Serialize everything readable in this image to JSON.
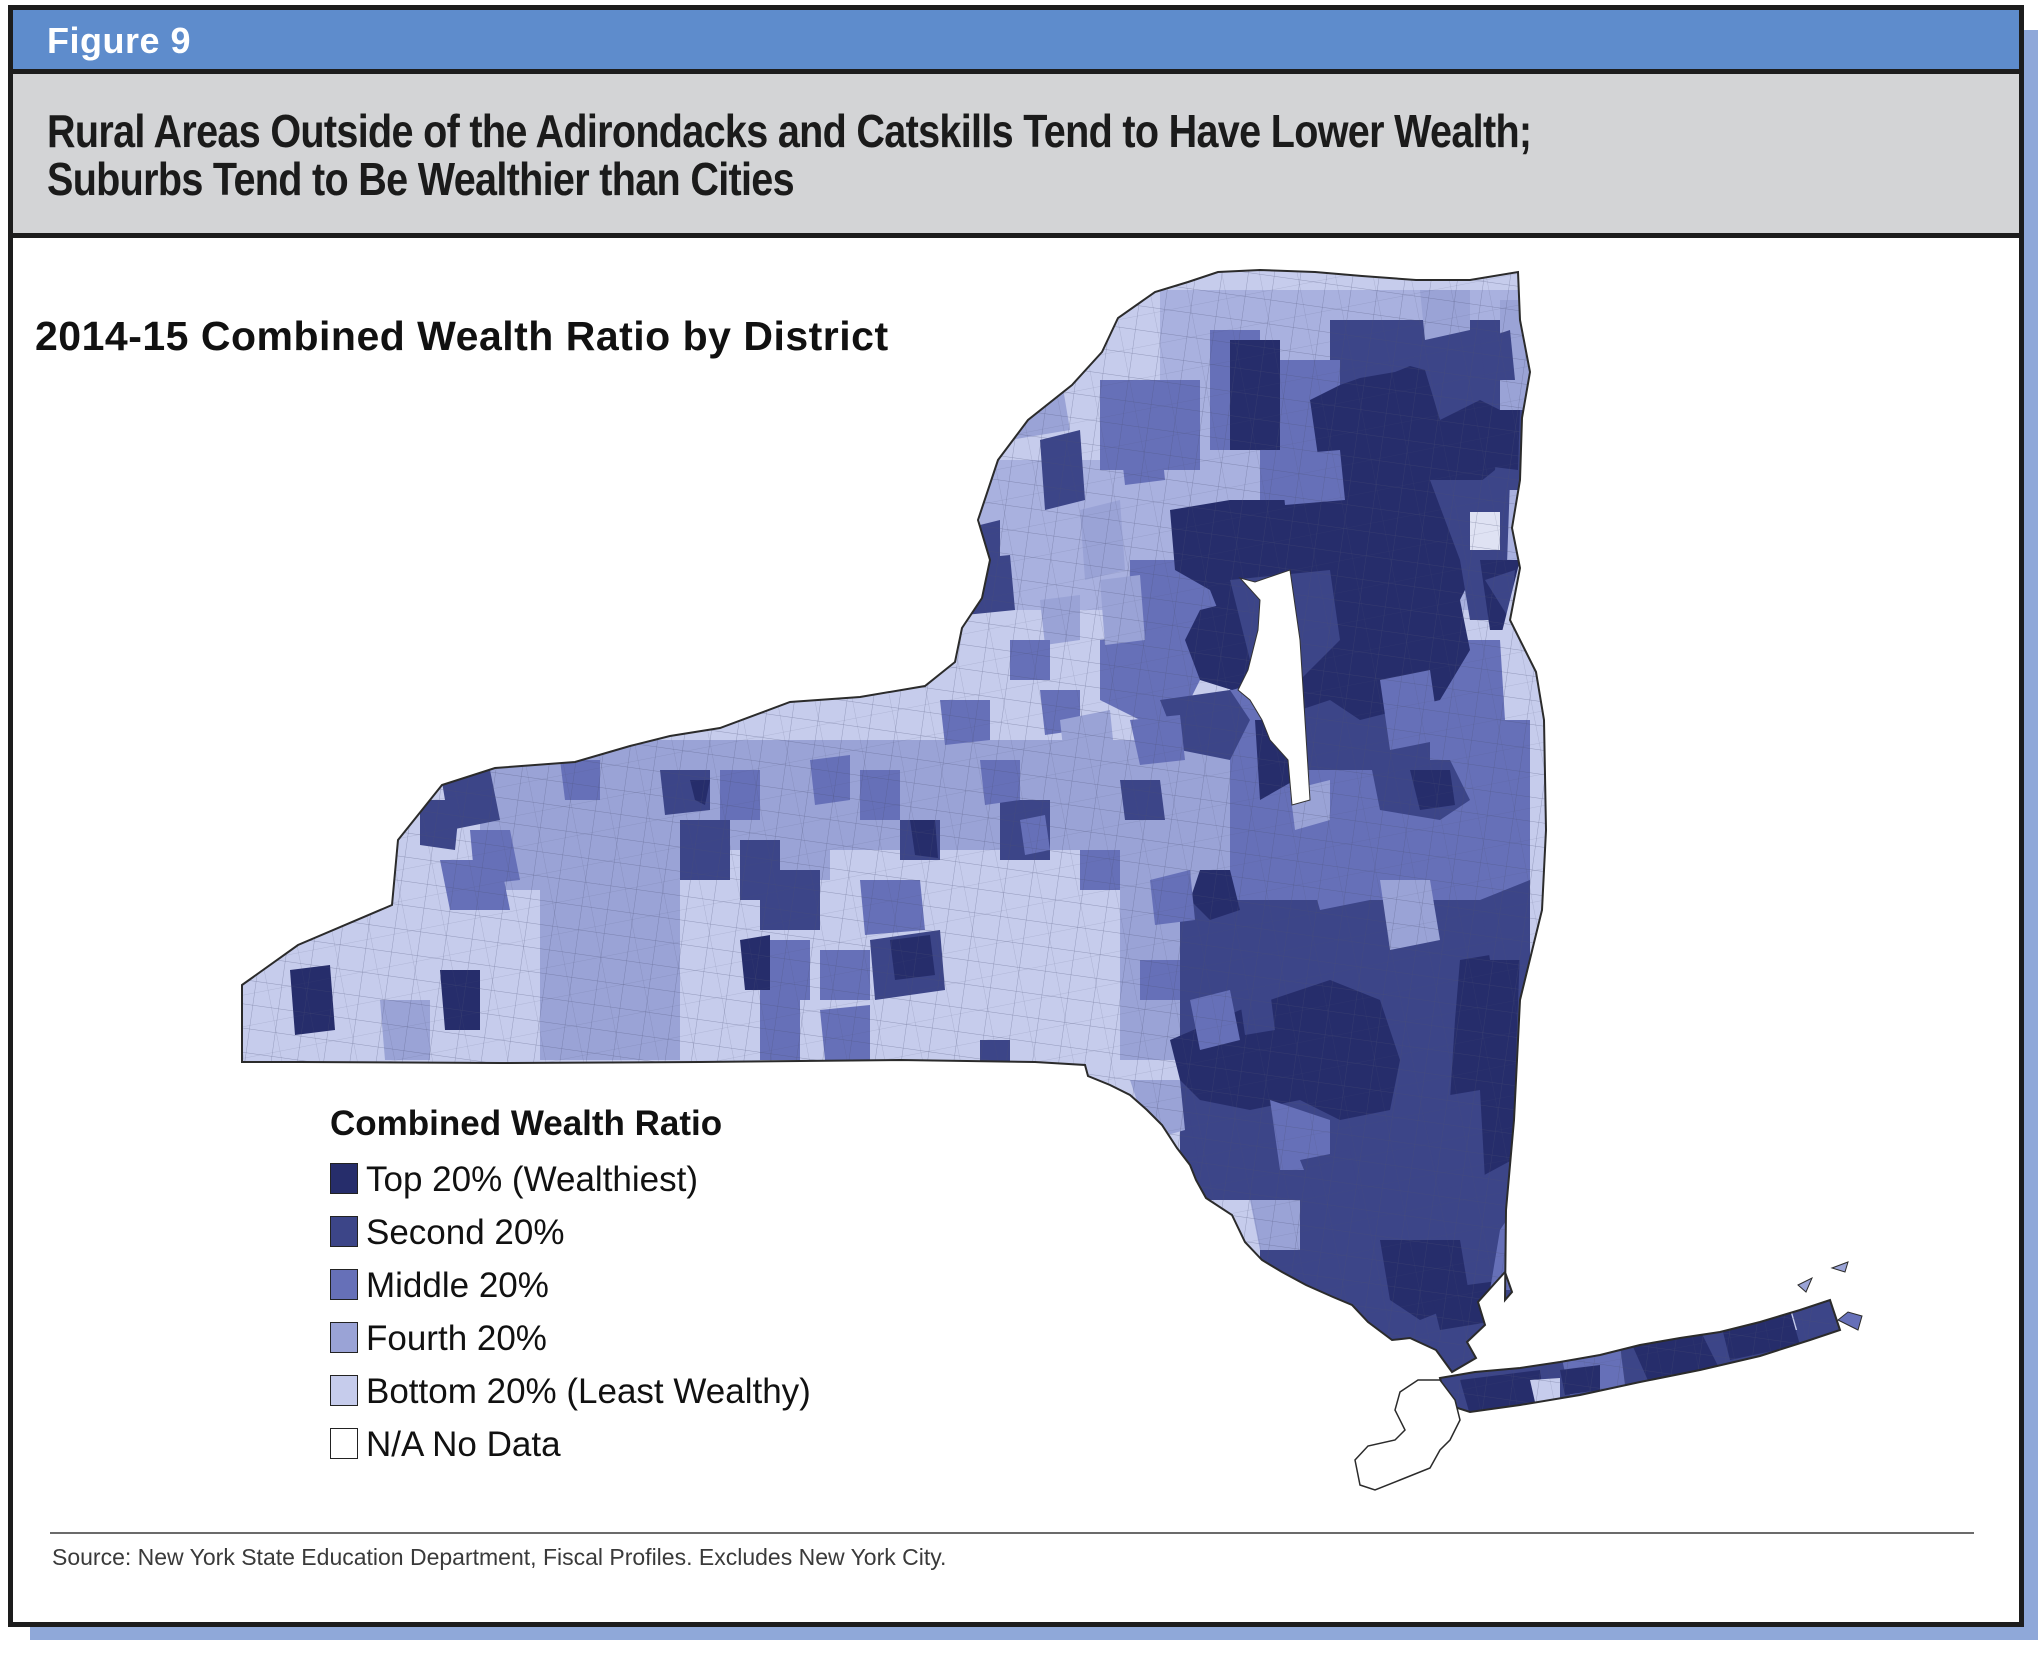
{
  "figure": {
    "label": "Figure 9",
    "title_line1": "Rural Areas Outside of the Adirondacks and Catskills Tend to Have Lower Wealth;",
    "title_line2": "Suburbs Tend to Be Wealthier than Cities"
  },
  "map": {
    "subtitle": "2014-15 Combined Wealth Ratio by District",
    "legend": {
      "title": "Combined Wealth Ratio",
      "items": [
        {
          "label": "Top 20% (Wealthiest)",
          "color": "#262d6b"
        },
        {
          "label": "Second 20%",
          "color": "#3c4588"
        },
        {
          "label": "Middle 20%",
          "color": "#6670b8"
        },
        {
          "label": "Fourth 20%",
          "color": "#9aa3d6"
        },
        {
          "label": "Bottom 20% (Least Wealthy)",
          "color": "#c6ccec"
        },
        {
          "label": "N/A No Data",
          "color": "#ffffff"
        }
      ]
    }
  },
  "source": "Source: New York State Education Department, Fiscal Profiles. Excludes New York City."
}
